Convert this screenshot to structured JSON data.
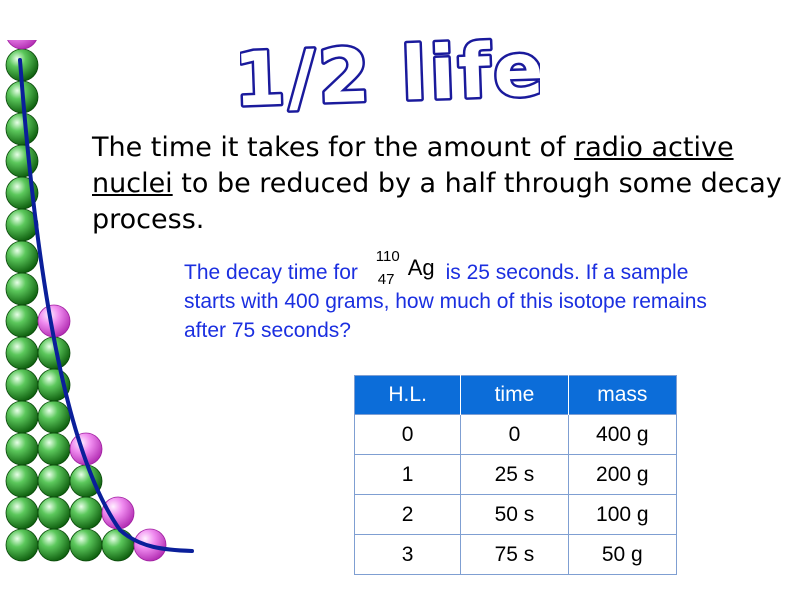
{
  "title": "1/2 life",
  "definition": {
    "before": "The time it takes for the amount of ",
    "term": "radio active nuclei",
    "after": " to be reduced by a half through some decay process."
  },
  "question": {
    "before": "The decay time for ",
    "isotope": {
      "mass_number": "110",
      "atomic_number": "47",
      "symbol": "Ag"
    },
    "after": " is 25 seconds. If a sample starts with 400 grams, how much of this isotope remains after 75 seconds?"
  },
  "table": {
    "headers": [
      "H.L.",
      "time",
      "mass"
    ],
    "rows": [
      [
        "0",
        "0",
        "400 g"
      ],
      [
        "1",
        "25 s",
        "200 g"
      ],
      [
        "2",
        "50 s",
        "100 g"
      ],
      [
        "3",
        "75 s",
        "50 g"
      ]
    ]
  },
  "colors": {
    "title_fill": "#ffffff",
    "title_outline": "#1a1a9c",
    "question_text": "#1b2fe0",
    "table_header": "#0c6dd9",
    "stable_nucleus": "#1f8a1f",
    "decaying_nucleus": "#e060d8",
    "decay_curve": "#0a1f9a"
  },
  "illustration": {
    "icon": "decay-curve-nuclei",
    "column_heights": [
      17,
      8,
      4,
      2,
      1
    ],
    "decaying_top": [
      true,
      true,
      true,
      true,
      true
    ]
  }
}
